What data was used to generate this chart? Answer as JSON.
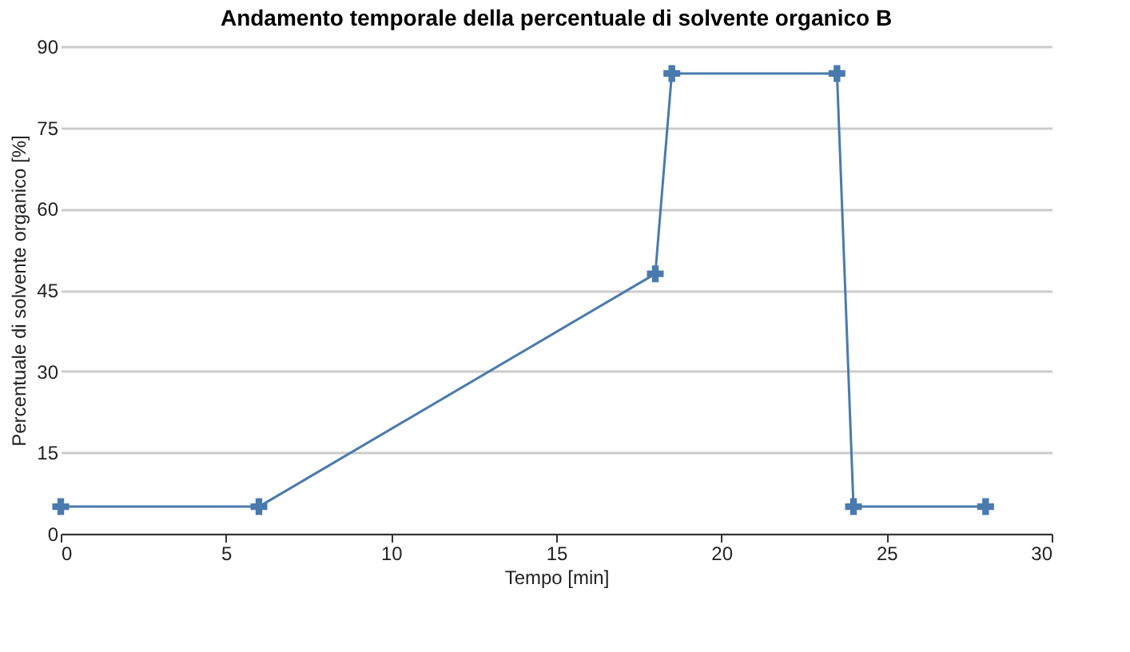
{
  "chart_data": {
    "type": "line",
    "title": "Andamento temporale della percentuale di solvente organico B",
    "xlabel": "Tempo [min]",
    "ylabel": "Percentuale di solvente organico [%]",
    "x": [
      0,
      6,
      18,
      18.5,
      23.5,
      24,
      28
    ],
    "series": [
      {
        "color": "#4a7aad",
        "values": [
          5,
          5,
          48,
          85,
          85,
          5,
          5
        ]
      }
    ],
    "xlim": [
      0,
      30
    ],
    "xticks": [
      0,
      5,
      10,
      15,
      20,
      25,
      30
    ],
    "ylim": [
      0,
      90
    ],
    "yticks": [
      0,
      15,
      30,
      45,
      60,
      75,
      90
    ],
    "grid": "y",
    "marker": "cross",
    "line_style": "solid"
  }
}
